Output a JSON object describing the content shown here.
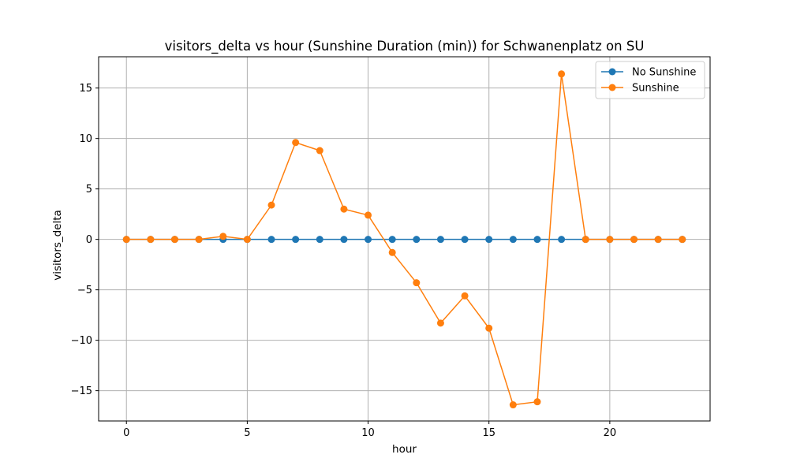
{
  "chart_data": {
    "type": "line",
    "title": "visitors_delta vs hour (Sunshine Duration (min)) for Schwanenplatz on SU",
    "xlabel": "hour",
    "ylabel": "visitors_delta",
    "xlim": [
      -1.15,
      24.15
    ],
    "ylim": [
      -18.0,
      18.1
    ],
    "xticks": [
      0,
      5,
      10,
      15,
      20
    ],
    "yticks": [
      -15,
      -10,
      -5,
      0,
      5,
      10,
      15
    ],
    "ytick_labels": [
      "−15",
      "−10",
      "−5",
      "0",
      "5",
      "10",
      "15"
    ],
    "grid": true,
    "legend_position": "top-right",
    "x": [
      0,
      1,
      2,
      3,
      4,
      5,
      6,
      7,
      8,
      9,
      10,
      11,
      12,
      13,
      14,
      15,
      16,
      17,
      18,
      19,
      20,
      21,
      22,
      23
    ],
    "series": [
      {
        "name": "No Sunshine",
        "color": "#1f77b4",
        "values": [
          0,
          0,
          0,
          0,
          0,
          0,
          0,
          0,
          0,
          0,
          0,
          0,
          0,
          0,
          0,
          0,
          0,
          0,
          0,
          0,
          0,
          0,
          0,
          0
        ]
      },
      {
        "name": "Sunshine",
        "color": "#ff7f0e",
        "values": [
          0,
          0,
          0,
          0,
          0.3,
          0,
          3.4,
          9.6,
          8.8,
          3.0,
          2.4,
          -1.3,
          -4.3,
          -8.3,
          -5.6,
          -8.8,
          -16.4,
          -16.1,
          16.4,
          0,
          0,
          0,
          0,
          0
        ]
      }
    ]
  }
}
